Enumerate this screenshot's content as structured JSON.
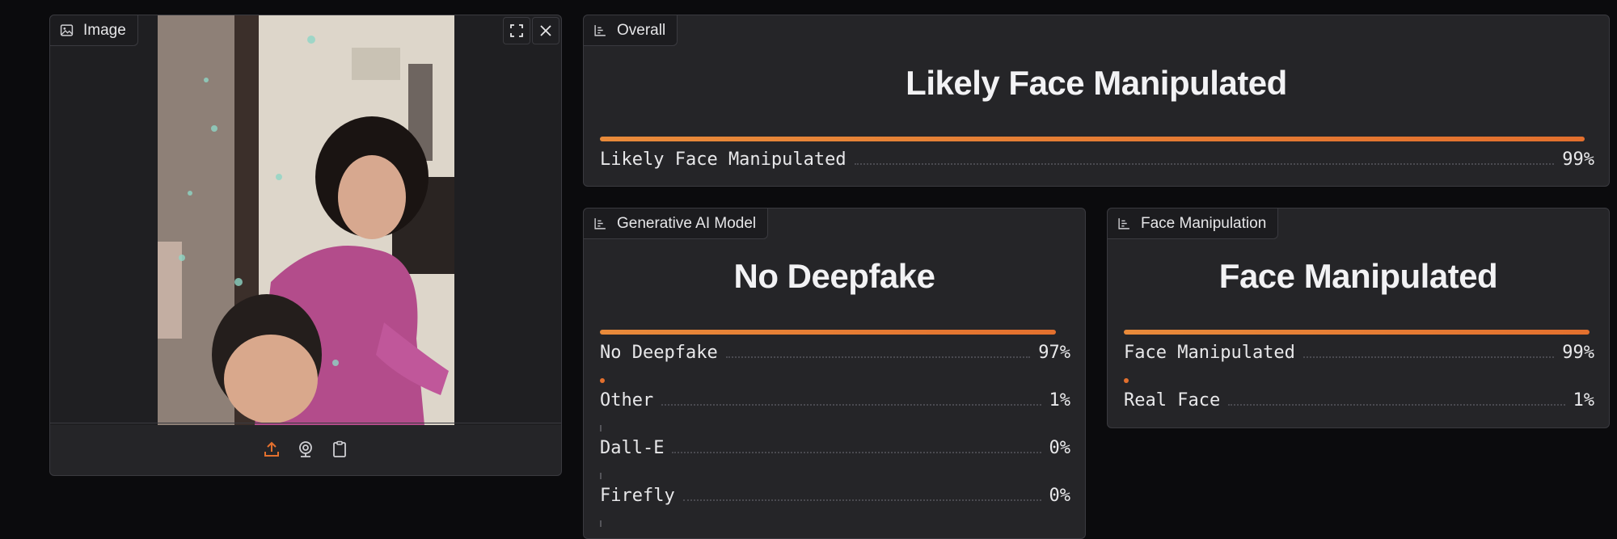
{
  "image_panel": {
    "tab_label": "Image"
  },
  "overall": {
    "tab_label": "Overall",
    "headline": "Likely Face Manipulated",
    "rows": [
      {
        "label": "Likely Face Manipulated",
        "value": "99%",
        "fraction": 0.99
      }
    ]
  },
  "generative": {
    "tab_label": "Generative AI Model",
    "headline": "No Deepfake",
    "rows": [
      {
        "label": "No Deepfake",
        "value": "97%",
        "fraction": 0.97
      },
      {
        "label": "Other",
        "value": "1%",
        "fraction": 0.01
      },
      {
        "label": "Dall-E",
        "value": "0%",
        "fraction": 0
      },
      {
        "label": "Firefly",
        "value": "0%",
        "fraction": 0
      }
    ]
  },
  "face": {
    "tab_label": "Face Manipulation",
    "headline": "Face Manipulated",
    "rows": [
      {
        "label": "Face Manipulated",
        "value": "99%",
        "fraction": 0.99
      },
      {
        "label": "Real Face",
        "value": "1%",
        "fraction": 0.01
      }
    ]
  },
  "colors": {
    "accent": "#e3702e",
    "panel": "#252528",
    "background": "#0b0b0d"
  },
  "icons": [
    "image-icon",
    "fullscreen-icon",
    "close-icon",
    "upload-icon",
    "webcam-icon",
    "clipboard-icon",
    "chart-icon"
  ]
}
